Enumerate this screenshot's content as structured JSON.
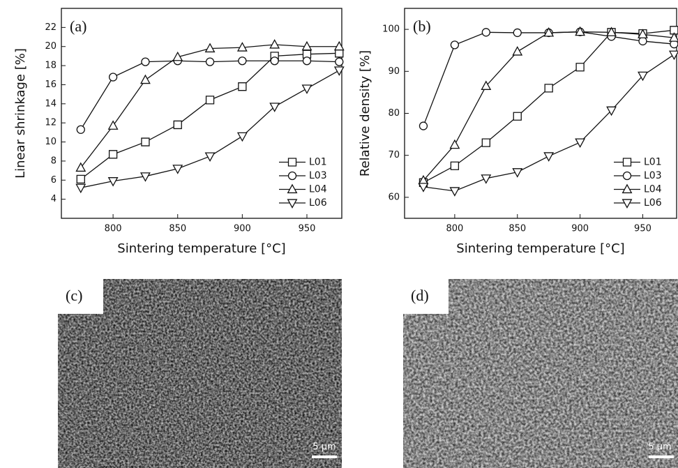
{
  "chart_data": [
    {
      "type": "line",
      "panel_label": "(a)",
      "x_label": "Sintering temperature [°C]",
      "y_label": "Linear shrinkage [%]",
      "x": [
        775,
        800,
        825,
        850,
        875,
        900,
        925,
        950,
        975
      ],
      "xlim": [
        760,
        977
      ],
      "xticks": [
        800,
        850,
        900,
        950
      ],
      "ylim": [
        2,
        24
      ],
      "yticks": [
        4,
        6,
        8,
        10,
        12,
        14,
        16,
        18,
        20,
        22
      ],
      "legend": "lower right",
      "series": [
        {
          "name": "L01",
          "color": "#111111",
          "marker": "square",
          "values": [
            6.1,
            8.7,
            10.0,
            11.8,
            14.4,
            15.8,
            19.0,
            19.2,
            19.3
          ]
        },
        {
          "name": "L03",
          "color": "#111111",
          "marker": "circle",
          "values": [
            11.3,
            16.8,
            18.4,
            18.5,
            18.4,
            18.5,
            18.5,
            18.5,
            18.4
          ]
        },
        {
          "name": "L04",
          "color": "#111111",
          "marker": "triangle-up",
          "values": [
            7.3,
            11.7,
            16.5,
            18.9,
            19.8,
            19.9,
            20.2,
            20.0,
            20.0
          ]
        },
        {
          "name": "L06",
          "color": "#111111",
          "marker": "triangle-down",
          "values": [
            5.2,
            5.9,
            6.4,
            7.2,
            8.5,
            10.6,
            13.7,
            15.6,
            17.5
          ]
        }
      ]
    },
    {
      "type": "line",
      "panel_label": "(b)",
      "x_label": "Sintering temperature [°C]",
      "y_label": "Relative density [%]",
      "x": [
        775,
        800,
        825,
        850,
        875,
        900,
        925,
        950,
        975
      ],
      "xlim": [
        760,
        977
      ],
      "xticks": [
        800,
        850,
        900,
        950
      ],
      "ylim": [
        55,
        105
      ],
      "yticks": [
        60,
        70,
        80,
        90,
        100
      ],
      "legend": "lower right",
      "series": [
        {
          "name": "L01",
          "color": "#111111",
          "marker": "square",
          "values": [
            63.5,
            67.5,
            73.0,
            79.3,
            86.0,
            91.0,
            99.3,
            99.0,
            99.8
          ]
        },
        {
          "name": "L03",
          "color": "#111111",
          "marker": "circle",
          "values": [
            77.0,
            96.3,
            99.3,
            99.2,
            99.2,
            99.4,
            98.3,
            97.2,
            96.5
          ]
        },
        {
          "name": "L04",
          "color": "#111111",
          "marker": "triangle-up",
          "values": [
            64.0,
            72.5,
            86.5,
            94.7,
            99.2,
            99.4,
            99.3,
            98.8,
            98.0
          ]
        },
        {
          "name": "L06",
          "color": "#111111",
          "marker": "triangle-down",
          "values": [
            62.5,
            61.5,
            64.5,
            66.0,
            69.8,
            73.1,
            80.7,
            89.0,
            94.0
          ]
        }
      ]
    }
  ],
  "images": [
    {
      "label": "(c)",
      "scale_bar": "5 µm"
    },
    {
      "label": "(d)",
      "scale_bar": "5 µm"
    }
  ]
}
